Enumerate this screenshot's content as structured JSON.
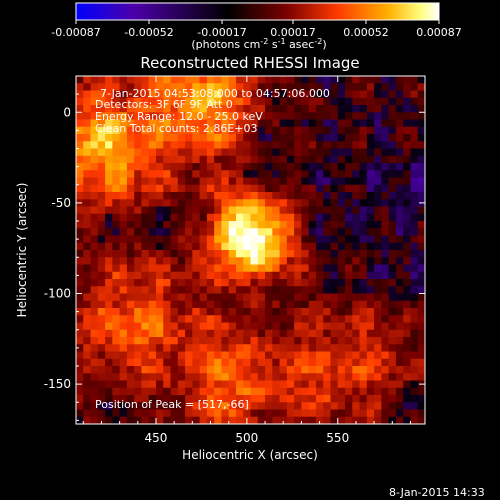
{
  "chart_data": {
    "type": "heatmap",
    "title": "Reconstructed RHESSI Image",
    "xlabel": "Heliocentric X (arcsec)",
    "ylabel": "Heliocentric Y (arcsec)",
    "xlim": [
      406,
      598
    ],
    "ylim": [
      -172,
      20
    ],
    "x_ticks": [
      450,
      500,
      550
    ],
    "y_ticks": [
      0,
      -50,
      -100,
      -150
    ],
    "x_tick_labels": [
      "450",
      "500",
      "550"
    ],
    "y_tick_labels": [
      "0",
      "-50",
      "-100",
      "-150"
    ],
    "colorbar": {
      "ticks": [
        -0.00087,
        -0.00052,
        -0.00017,
        0.00017,
        0.00052,
        0.00087
      ],
      "tick_labels": [
        "-0.00087",
        "-0.00052",
        "-0.00017",
        "0.00017",
        "0.00052",
        "0.00087"
      ],
      "unit_label": "(photons cm-2 s-1 asec-2)",
      "unit_parts": {
        "a": "(photons cm",
        "a_exp": "-2",
        "b": " s",
        "b_exp": "-1",
        "c": " asec",
        "c_exp": "-2",
        "d": ")"
      },
      "colors": [
        "#0000ff",
        "#4b00a8",
        "#000000",
        "#7a0000",
        "#ff3a00",
        "#ffb000",
        "#ffff80",
        "#ffffff"
      ]
    },
    "peak": {
      "x": 517,
      "y": -66
    },
    "sources": [
      {
        "x": 503,
        "y": -68,
        "amp": 1.0
      },
      {
        "x": 478,
        "y": 8,
        "amp": 0.55
      },
      {
        "x": 420,
        "y": -20,
        "amp": 0.55
      },
      {
        "x": 500,
        "y": -150,
        "amp": 0.45
      },
      {
        "x": 440,
        "y": -120,
        "amp": 0.4
      },
      {
        "x": 560,
        "y": -140,
        "amp": 0.35
      }
    ],
    "annotations": {
      "time_range": "7-Jan-2015 04:53:08.000 to 04:57:06.000",
      "detectors": "Detectors: 3F 6F 9F  Att 0",
      "energy": "Energy Range: 12.0 - 25.0 keV",
      "clean": "Clean     Total counts: 2.86E+03",
      "peak_label": "Position of Peak = [517,-66]"
    },
    "timestamp": "8-Jan-2015 14:33"
  }
}
